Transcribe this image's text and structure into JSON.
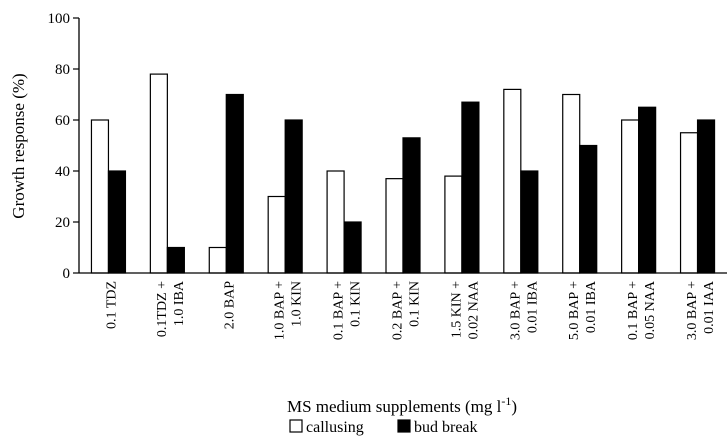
{
  "chart_data": {
    "type": "bar",
    "title": "",
    "ylabel": "Growth response (%)",
    "xlabel_main": "MS medium supplements (mg l",
    "xlabel_sup": "-1",
    "xlabel_close": ")",
    "ylim": [
      0,
      100
    ],
    "yticks": [
      "0",
      "20",
      "40",
      "60",
      "80",
      "100"
    ],
    "categories": [
      [
        "0.1 TDZ"
      ],
      [
        "0.1TDZ +",
        "1.0 IBA"
      ],
      [
        "2.0 BAP"
      ],
      [
        "1.0 BAP +",
        "1.0 KIN"
      ],
      [
        "0.1 BAP +",
        "0.1 KIN"
      ],
      [
        "0.2 BAP +",
        "0.1 KIN"
      ],
      [
        "1.5 KIN +",
        "0.02 NAA"
      ],
      [
        "3.0 BAP +",
        "0.01 IBA"
      ],
      [
        "5.0 BAP +",
        "0.01 IBA"
      ],
      [
        "0.1 BAP +",
        "0.05 NAA"
      ],
      [
        "3.0 BAP +",
        "0.01 IAA"
      ]
    ],
    "series": [
      {
        "name": "callusing",
        "color": "#ffffff",
        "values": [
          60,
          78,
          10,
          30,
          40,
          37,
          38,
          72,
          70,
          60,
          55
        ]
      },
      {
        "name": "bud break",
        "color": "#000000",
        "values": [
          40,
          10,
          70,
          60,
          20,
          53,
          67,
          40,
          50,
          65,
          60
        ]
      }
    ],
    "legend_position": "bottom-center",
    "grid": false
  }
}
